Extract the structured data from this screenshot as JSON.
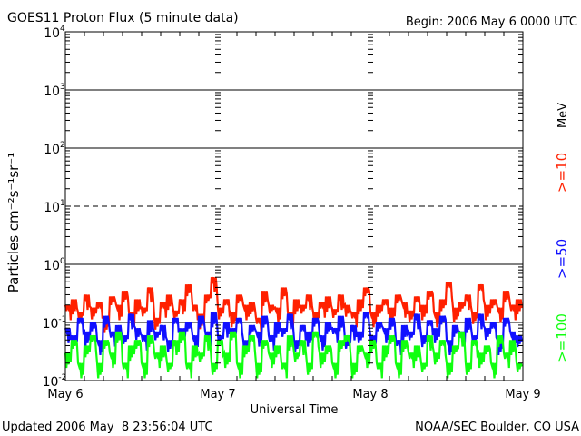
{
  "chart_data": {
    "type": "line",
    "title": "GOES11 Proton Flux (5 minute data)",
    "subtitle": "Begin: 2006 May 6 0000 UTC",
    "xlabel": "Universal Time",
    "ylabel": "Particles cm⁻²s⁻¹sr⁻¹",
    "x_ticks": [
      "May 6",
      "May 7",
      "May 8",
      "May 9"
    ],
    "x_range_hours": [
      0,
      72
    ],
    "x_step_hours": 1,
    "y_scale": "log",
    "ylim": [
      0.01,
      10000
    ],
    "y_ticks": [
      {
        "base": "10",
        "exp": "4"
      },
      {
        "base": "10",
        "exp": "3"
      },
      {
        "base": "10",
        "exp": "2"
      },
      {
        "base": "10",
        "exp": "1"
      },
      {
        "base": "10",
        "exp": "0"
      },
      {
        "base": "10",
        "exp": "-1"
      },
      {
        "base": "10",
        "exp": "-2"
      }
    ],
    "unit_label": "MeV",
    "series": [
      {
        "name": ">=10",
        "color": "#ff2000",
        "values": [
          0.2,
          0.25,
          0.15,
          0.3,
          0.18,
          0.22,
          0.12,
          0.28,
          0.2,
          0.35,
          0.15,
          0.25,
          0.18,
          0.4,
          0.12,
          0.22,
          0.3,
          0.16,
          0.25,
          0.45,
          0.2,
          0.14,
          0.3,
          0.6,
          0.18,
          0.25,
          0.15,
          0.3,
          0.2,
          0.22,
          0.12,
          0.35,
          0.2,
          0.18,
          0.4,
          0.15,
          0.25,
          0.2,
          0.3,
          0.15,
          0.22,
          0.28,
          0.17,
          0.3,
          0.2,
          0.15,
          0.25,
          0.4,
          0.15,
          0.2,
          0.25,
          0.18,
          0.3,
          0.22,
          0.16,
          0.28,
          0.2,
          0.35,
          0.15,
          0.25,
          0.5,
          0.18,
          0.22,
          0.3,
          0.15,
          0.45,
          0.2,
          0.25,
          0.18,
          0.35,
          0.2,
          0.25
        ]
      },
      {
        "name": ">=50",
        "color": "#1010ff",
        "values": [
          0.08,
          0.06,
          0.12,
          0.07,
          0.1,
          0.05,
          0.13,
          0.07,
          0.09,
          0.06,
          0.14,
          0.08,
          0.06,
          0.11,
          0.07,
          0.09,
          0.05,
          0.12,
          0.08,
          0.1,
          0.06,
          0.13,
          0.07,
          0.15,
          0.06,
          0.1,
          0.08,
          0.12,
          0.05,
          0.09,
          0.07,
          0.13,
          0.06,
          0.1,
          0.08,
          0.14,
          0.05,
          0.09,
          0.07,
          0.12,
          0.06,
          0.1,
          0.08,
          0.13,
          0.05,
          0.09,
          0.07,
          0.15,
          0.06,
          0.1,
          0.08,
          0.12,
          0.05,
          0.09,
          0.07,
          0.14,
          0.06,
          0.11,
          0.08,
          0.13,
          0.05,
          0.09,
          0.07,
          0.12,
          0.06,
          0.14,
          0.08,
          0.1,
          0.05,
          0.12,
          0.07,
          0.06
        ]
      },
      {
        "name": ">=100",
        "color": "#10ff10",
        "values": [
          0.03,
          0.05,
          0.02,
          0.04,
          0.06,
          0.02,
          0.05,
          0.03,
          0.07,
          0.02,
          0.04,
          0.05,
          0.02,
          0.06,
          0.03,
          0.04,
          0.02,
          0.05,
          0.07,
          0.02,
          0.04,
          0.03,
          0.06,
          0.02,
          0.05,
          0.03,
          0.07,
          0.02,
          0.04,
          0.06,
          0.02,
          0.05,
          0.03,
          0.04,
          0.02,
          0.06,
          0.03,
          0.05,
          0.02,
          0.07,
          0.03,
          0.04,
          0.02,
          0.05,
          0.06,
          0.02,
          0.04,
          0.03,
          0.05,
          0.02,
          0.04,
          0.06,
          0.02,
          0.05,
          0.03,
          0.04,
          0.02,
          0.06,
          0.03,
          0.05,
          0.02,
          0.04,
          0.07,
          0.02,
          0.05,
          0.03,
          0.04,
          0.02,
          0.06,
          0.03,
          0.05,
          0.02
        ]
      }
    ]
  },
  "footer": {
    "updated": "Updated 2006 May  8 23:56:04 UTC",
    "credit": "NOAA/SEC Boulder, CO USA"
  }
}
